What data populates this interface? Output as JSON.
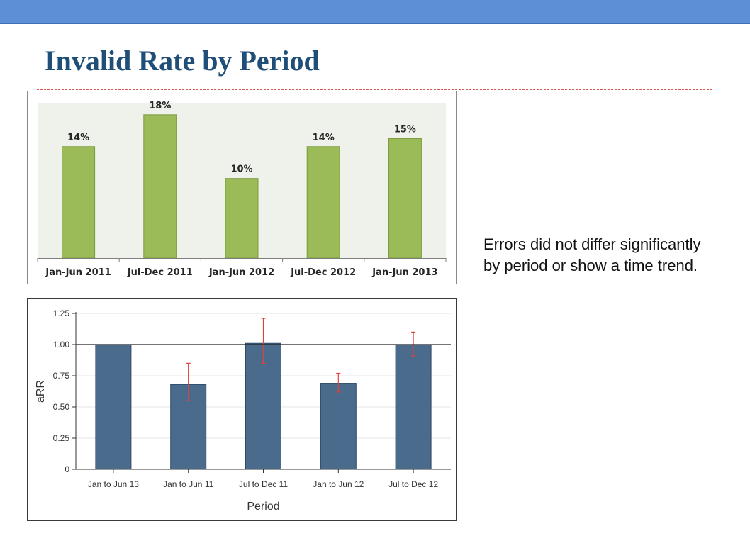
{
  "slide": {
    "title": "Invalid Rate by Period",
    "note": "Errors did not differ significantly by period or show a time trend.",
    "accent_color": "#5b8fd6",
    "title_color": "#1f4e79",
    "divider_color": "#d9534f"
  },
  "chart_data": [
    {
      "type": "bar",
      "title": "",
      "xlabel": "",
      "ylabel": "",
      "categories": [
        "Jan-Jun 2011",
        "Jul-Dec 2011",
        "Jan-Jun 2012",
        "Jul-Dec 2012",
        "Jan-Jun 2013"
      ],
      "values": [
        14,
        18,
        10,
        14,
        15
      ],
      "data_labels": [
        "14%",
        "18%",
        "10%",
        "14%",
        "15%"
      ],
      "ylim": [
        0,
        19.5
      ],
      "grid": false,
      "bar_color": "#9bbb59",
      "plot_background": "#eff2ea"
    },
    {
      "type": "bar",
      "title": "",
      "xlabel": "Period",
      "ylabel": "aRR",
      "categories": [
        "Jan to Jun 13",
        "Jan to Jun 11",
        "Jul to Dec 11",
        "Jan to Jun 12",
        "Jul to Dec 12"
      ],
      "values": [
        1.0,
        0.68,
        1.01,
        0.69,
        1.0
      ],
      "error_low": [
        1.0,
        0.55,
        0.85,
        0.62,
        0.91
      ],
      "error_high": [
        1.0,
        0.85,
        1.21,
        0.77,
        1.1
      ],
      "yticks": [
        "0",
        "0.25",
        "0.50",
        "0.75",
        "1.00",
        "1.25"
      ],
      "ylim": [
        0,
        1.25
      ],
      "reference_line": 1.0,
      "grid": true,
      "bar_color": "#4a6b8c",
      "error_color": "#e0413a"
    }
  ]
}
